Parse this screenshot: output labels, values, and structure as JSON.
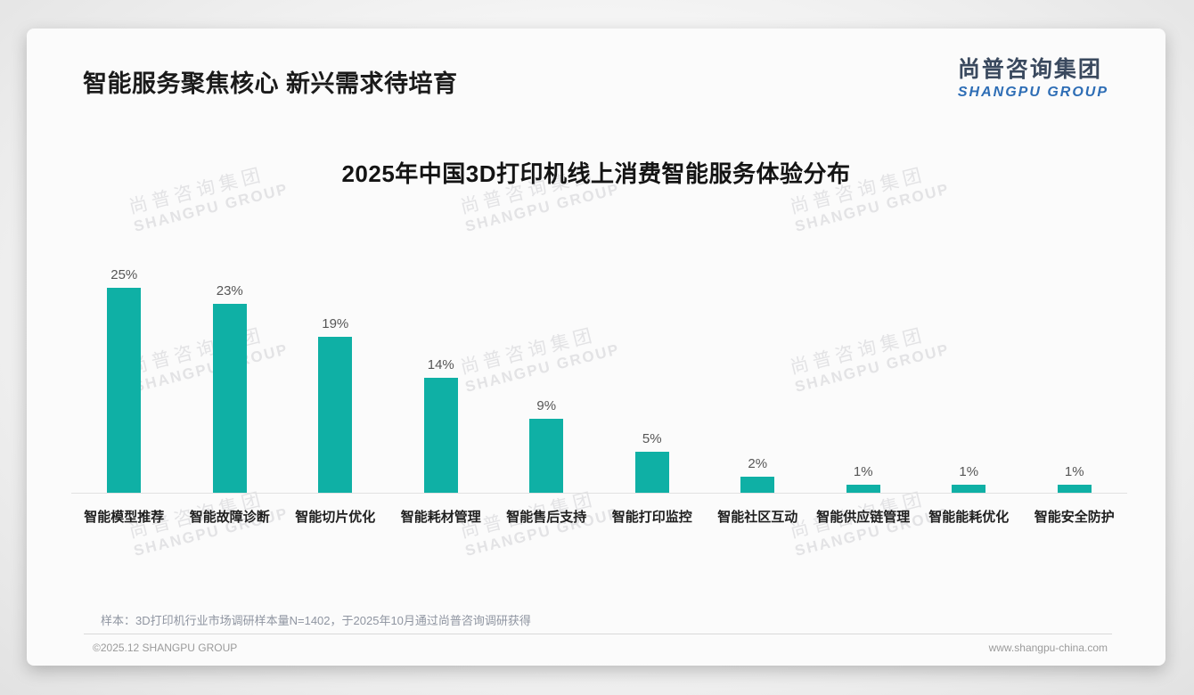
{
  "header": {
    "title": "智能服务聚焦核心 新兴需求待培育"
  },
  "logo": {
    "cn": "尚普咨询集团",
    "en": "SHANGPU GROUP"
  },
  "watermark": {
    "cn": "尚普咨询集团",
    "en": "SHANGPU GROUP"
  },
  "chart_data": {
    "type": "bar",
    "title": "2025年中国3D打印机线上消费智能服务体验分布",
    "categories": [
      "智能模型推荐",
      "智能故障诊断",
      "智能切片优化",
      "智能耗材管理",
      "智能售后支持",
      "智能打印监控",
      "智能社区互动",
      "智能供应链管理",
      "智能能耗优化",
      "智能安全防护"
    ],
    "values": [
      25,
      23,
      19,
      14,
      9,
      5,
      2,
      1,
      1,
      1
    ],
    "unit": "%",
    "xlabel": "",
    "ylabel": "",
    "ylim": [
      0,
      27
    ],
    "grid": false,
    "legend": false,
    "bar_color": "#0fb0a5"
  },
  "footnote": "样本：3D打印机行业市场调研样本量N=1402，于2025年10月通过尚普咨询调研获得",
  "footer": {
    "copyright": "©2025.12 SHANGPU GROUP",
    "website": "www.shangpu-china.com"
  },
  "colors": {
    "bar": "#0fb0a5",
    "logo_blue": "#2d6db5",
    "logo_dark": "#3a495e",
    "axis": "#e1e1e1"
  }
}
